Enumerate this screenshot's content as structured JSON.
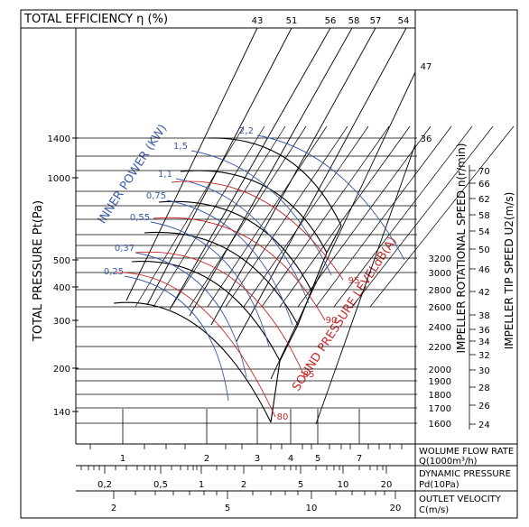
{
  "chart_data": {
    "type": "line",
    "title": "TOTAL EFFICIENCY η (%)",
    "efficiency_labels": [
      "43",
      "51",
      "56",
      "58",
      "57",
      "54",
      "47",
      "36"
    ],
    "ylabel": "TOTAL PRESSURE Pt(Pa)",
    "y_ticks": [
      "1400",
      "1000",
      "500",
      "400",
      "300",
      "200",
      "140"
    ],
    "flow_axis": {
      "label_1": "WOLUME FLOW RATE",
      "label_2": "Q(1000m³/h)",
      "ticks": [
        "1",
        "2",
        "3",
        "4",
        "5",
        "7"
      ]
    },
    "dynamic_pressure_axis": {
      "label_1": "DYNAMIC PRESSURE",
      "label_2": "Pd(10Pa)",
      "ticks": [
        "0,2",
        "0,5",
        "1",
        "2",
        "5",
        "10",
        "20"
      ]
    },
    "velocity_axis": {
      "label_1": "OUTLET VELOCITY",
      "label_2": "C(m/s)",
      "ticks": [
        "2",
        "5",
        "10",
        "20"
      ]
    },
    "inner_power": {
      "label": "INNER POWER (KW)",
      "values": [
        "2,2",
        "1,5",
        "1,1",
        "0,75",
        "0,55",
        "0,37",
        "0,25"
      ]
    },
    "sound": {
      "label": "SOUND PRESSURE LEVELdB(A)",
      "values": [
        "95",
        "90",
        "85",
        "80"
      ]
    },
    "speed_axis": {
      "label": "IMPELLER ROTATIONAL SPEED n(r/min)",
      "ticks": [
        "3200",
        "3000",
        "2800",
        "2600",
        "2400",
        "2200",
        "2000",
        "1900",
        "1800",
        "1700",
        "1600"
      ]
    },
    "tip_speed_axis": {
      "label": "IMPELLER TIP SPEED U2(m/s)",
      "ticks": [
        "70",
        "66",
        "62",
        "58",
        "54",
        "50",
        "46",
        "42",
        "38",
        "36",
        "34",
        "32",
        "30",
        "28",
        "26",
        "24"
      ]
    },
    "colors": {
      "line": "#000000",
      "power": "#3a5ba8",
      "sound": "#c62828"
    }
  }
}
